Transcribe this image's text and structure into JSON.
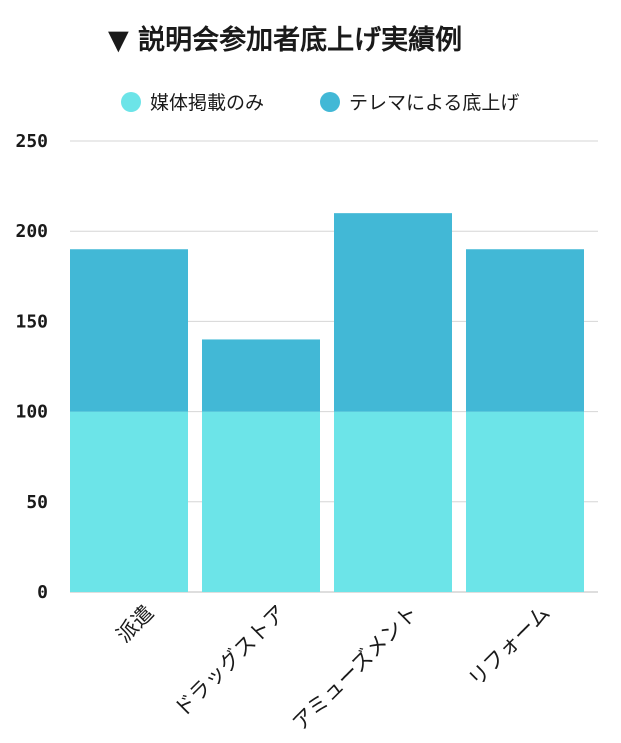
{
  "chart_data": {
    "type": "bar",
    "stacked": true,
    "title": "▼ 説明会参加者底上げ実績例",
    "categories": [
      "派遣",
      "ドラッグストア",
      "アミューズメント",
      "リフォーム"
    ],
    "series": [
      {
        "name": "媒体掲載のみ",
        "color": "#6ce4e8",
        "values": [
          100,
          100,
          100,
          100
        ]
      },
      {
        "name": "テレマによる底上げ",
        "color": "#42b8d6",
        "values": [
          90,
          40,
          110,
          90
        ]
      }
    ],
    "ylim": [
      0,
      250
    ],
    "yticks": [
      0,
      50,
      100,
      150,
      200,
      250
    ],
    "grid": true,
    "legend": "top-center"
  }
}
